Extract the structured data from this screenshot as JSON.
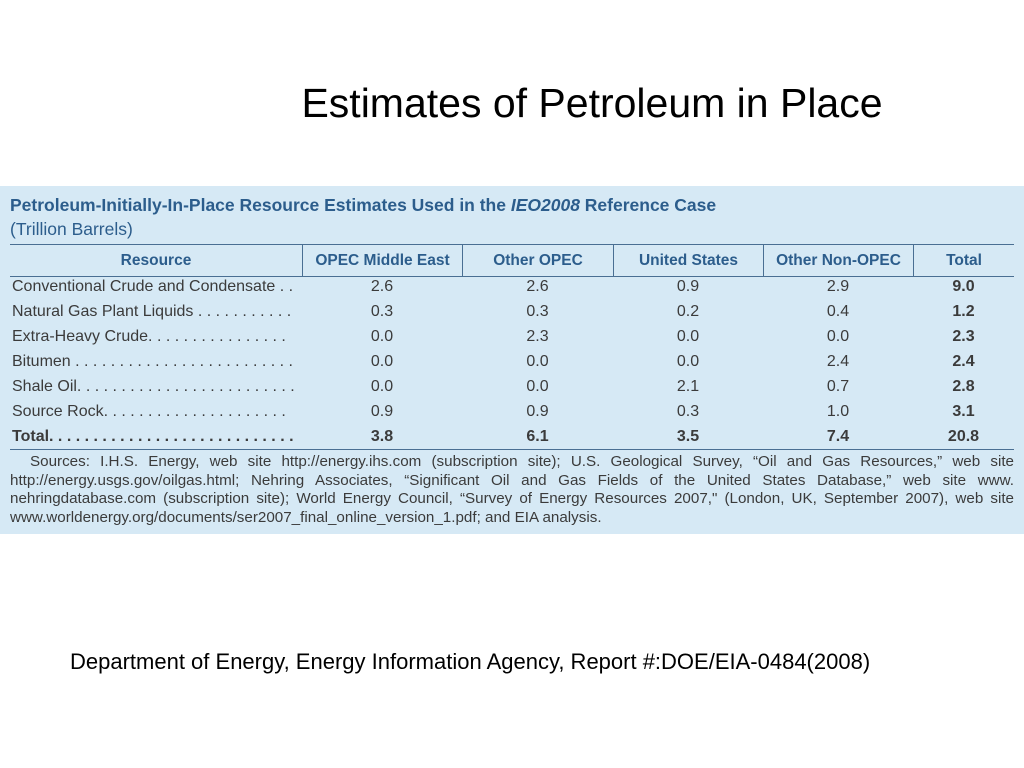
{
  "slide": {
    "title": "Estimates of Petroleum in Place",
    "footer": "Department of Energy, Energy Information Agency, Report #:DOE/EIA-0484(2008)"
  },
  "table": {
    "title_prefix": "Petroleum-Initially-In-Place Resource Estimates Used in the ",
    "title_italic": "IEO2008",
    "title_suffix": " Reference Case",
    "unit": "(Trillion Barrels)",
    "columns": [
      "Resource",
      "OPEC Middle East",
      "Other OPEC",
      "United States",
      "Other Non-OPEC",
      "Total"
    ],
    "rows": [
      {
        "resource": "Conventional Crude and Condensate . .",
        "values": [
          "2.6",
          "2.6",
          "0.9",
          "2.9",
          "9.0"
        ]
      },
      {
        "resource": "Natural Gas Plant Liquids . . . . . . . . . . .",
        "values": [
          "0.3",
          "0.3",
          "0.2",
          "0.4",
          "1.2"
        ]
      },
      {
        "resource": "Extra-Heavy Crude. . . . . . . . . . . . . . . .",
        "values": [
          "0.0",
          "2.3",
          "0.0",
          "0.0",
          "2.3"
        ]
      },
      {
        "resource": "Bitumen . . . . . . . . . . . . . . . . . . . . . . . . .",
        "values": [
          "0.0",
          "0.0",
          "0.0",
          "2.4",
          "2.4"
        ]
      },
      {
        "resource": "Shale Oil. . . . . . . . . . . . . . . . . . . . . . . . .",
        "values": [
          "0.0",
          "0.0",
          "2.1",
          "0.7",
          "2.8"
        ]
      },
      {
        "resource": "Source Rock. . . . . . . . . . . . . . . . . . . . .",
        "values": [
          "0.9",
          "0.9",
          "0.3",
          "1.0",
          "3.1"
        ]
      },
      {
        "resource": "Total. . . . . . . . . . . . . . . . . . . . . . . . . . . .",
        "values": [
          "3.8",
          "6.1",
          "3.5",
          "7.4",
          "20.8"
        ]
      }
    ],
    "sources_lines": [
      "Sources: I.H.S. Energy, web site http://energy.ihs.com (subscription site); U.S. Geological Survey, “Oil and Gas Resources,” web site",
      "http://energy.usgs.gov/oilgas.html; Nehring Associates, “Significant Oil and Gas Fields of the United States Database,” web site www.",
      "nehringdatabase.com (subscription site); World Energy Council, “Survey of Energy Resources 2007,\" (London, UK, September 2007), web site",
      "www.worldenergy.org/documents/ser2007_final_online_version_1.pdf; and EIA analysis."
    ]
  },
  "colors": {
    "panel_background": "#d6e9f5",
    "heading_blue": "#2c5d8c",
    "rule_lines": "#4a6f93",
    "body_text": "#3b3b3b"
  }
}
